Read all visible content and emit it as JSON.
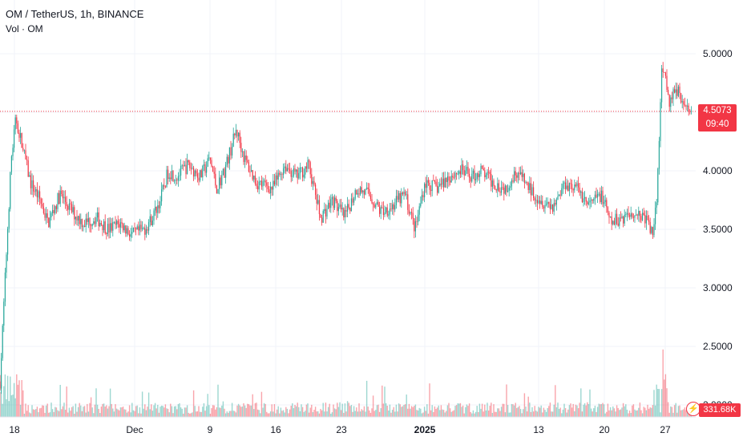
{
  "legend": {
    "symbol": "OM / TetherUS, 1h, BINANCE",
    "volume": "Vol · OM"
  },
  "last_price": {
    "value": "4.5073",
    "countdown": "09:40"
  },
  "last_volume": "331.68K",
  "colors": {
    "up": "#26a69a",
    "down": "#f23645",
    "grid": "#f0f3fa",
    "axis_text": "#131722"
  },
  "chart_data": {
    "type": "candlestick",
    "x_tick_labels": [
      "18",
      "Dec",
      "9",
      "16",
      "23",
      "2025",
      "13",
      "20",
      "27"
    ],
    "y_tick_labels": [
      "5.0000",
      "4.5000",
      "4.0000",
      "3.5000",
      "3.0000",
      "2.5000",
      "2.0000"
    ],
    "y_ticks": [
      5.0,
      4.5,
      4.0,
      3.5,
      3.0,
      2.5,
      2.0
    ],
    "ylim": [
      1.9,
      5.35
    ],
    "last_price_line": 4.5073,
    "price_path": [
      [
        0,
        2.2
      ],
      [
        8,
        3.3
      ],
      [
        14,
        4.1
      ],
      [
        20,
        4.45
      ],
      [
        28,
        4.2
      ],
      [
        38,
        3.9
      ],
      [
        50,
        3.75
      ],
      [
        60,
        3.55
      ],
      [
        75,
        3.8
      ],
      [
        90,
        3.65
      ],
      [
        105,
        3.55
      ],
      [
        120,
        3.6
      ],
      [
        135,
        3.5
      ],
      [
        150,
        3.55
      ],
      [
        165,
        3.45
      ],
      [
        180,
        3.5
      ],
      [
        190,
        3.6
      ],
      [
        200,
        3.75
      ],
      [
        210,
        4.0
      ],
      [
        220,
        3.95
      ],
      [
        235,
        4.05
      ],
      [
        250,
        3.95
      ],
      [
        262,
        4.1
      ],
      [
        270,
        3.85
      ],
      [
        280,
        4.0
      ],
      [
        295,
        4.35
      ],
      [
        305,
        4.1
      ],
      [
        320,
        3.9
      ],
      [
        340,
        3.85
      ],
      [
        355,
        4.05
      ],
      [
        370,
        3.95
      ],
      [
        385,
        4.05
      ],
      [
        400,
        3.6
      ],
      [
        415,
        3.75
      ],
      [
        430,
        3.6
      ],
      [
        445,
        3.85
      ],
      [
        460,
        3.8
      ],
      [
        475,
        3.65
      ],
      [
        490,
        3.7
      ],
      [
        505,
        3.8
      ],
      [
        518,
        3.5
      ],
      [
        530,
        3.9
      ],
      [
        545,
        3.85
      ],
      [
        560,
        3.95
      ],
      [
        575,
        4.0
      ],
      [
        590,
        3.95
      ],
      [
        600,
        4.0
      ],
      [
        615,
        3.9
      ],
      [
        630,
        3.85
      ],
      [
        645,
        4.0
      ],
      [
        660,
        3.85
      ],
      [
        675,
        3.75
      ],
      [
        690,
        3.7
      ],
      [
        705,
        3.9
      ],
      [
        720,
        3.85
      ],
      [
        735,
        3.7
      ],
      [
        750,
        3.8
      ],
      [
        762,
        3.55
      ],
      [
        775,
        3.6
      ],
      [
        790,
        3.65
      ],
      [
        805,
        3.6
      ],
      [
        815,
        3.45
      ],
      [
        820,
        3.8
      ],
      [
        823,
        4.4
      ],
      [
        826,
        4.9
      ],
      [
        835,
        4.6
      ],
      [
        845,
        4.7
      ],
      [
        855,
        4.55
      ],
      [
        864,
        4.5
      ]
    ]
  }
}
